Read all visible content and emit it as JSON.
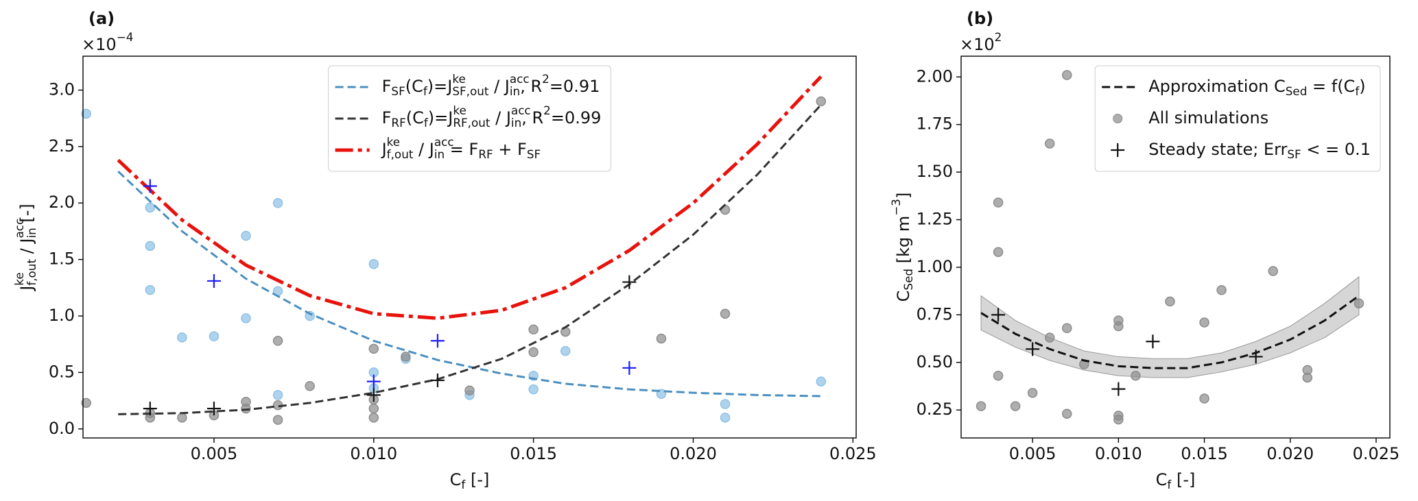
{
  "chart_data": [
    {
      "type": "scatter",
      "panel_label": "(a)",
      "offset_label": "×10^{−4}",
      "xlabel": "C_{f} [-]",
      "ylabel": "J^{ke}_{f,out} / J^{acc}_{in} [-]",
      "xlim": [
        0.0009,
        0.0251
      ],
      "ylim": [
        -0.08,
        3.3
      ],
      "xticks": [
        0.005,
        {
          "value": 0.01,
          "label": "0.010"
        },
        0.015,
        {
          "value": 0.02,
          "label": "0.020"
        },
        0.025
      ],
      "yticks": [
        {
          "value": 0,
          "label": "0.0"
        },
        0.5,
        {
          "value": 1,
          "label": "1.0"
        },
        1.5,
        {
          "value": 2,
          "label": "2.0"
        },
        2.5,
        {
          "value": 3,
          "label": "3.0"
        }
      ],
      "grid": false,
      "legend": "upper center",
      "series": [
        {
          "name": "F_{SF}(C_{f})=J^{ke}_{SF,out} / J^{acc}_{in}, R^{2}=0.91",
          "style": "dashed",
          "color": "#4a8fc0",
          "x": [
            0.002,
            0.004,
            0.006,
            0.008,
            0.01,
            0.012,
            0.014,
            0.016,
            0.018,
            0.02,
            0.022,
            0.024
          ],
          "values": [
            2.28,
            1.75,
            1.33,
            1.02,
            0.78,
            0.61,
            0.49,
            0.4,
            0.35,
            0.32,
            0.3,
            0.29
          ]
        },
        {
          "name": "F_{RF}(C_{f})=J^{ke}_{RF,out} / J^{acc}_{in}, R^{2}=0.99",
          "style": "dashed",
          "color": "#333333",
          "x": [
            0.002,
            0.004,
            0.006,
            0.008,
            0.01,
            0.012,
            0.014,
            0.016,
            0.018,
            0.02,
            0.022,
            0.024
          ],
          "values": [
            0.13,
            0.14,
            0.17,
            0.23,
            0.32,
            0.44,
            0.62,
            0.9,
            1.28,
            1.72,
            2.25,
            2.87
          ]
        },
        {
          "name": "J^{ke}_{f,out} / J^{acc}_{in} = F_{RF} + F_{SF}",
          "style": "dashdot",
          "color": "#e8120c",
          "x": [
            0.002,
            0.004,
            0.006,
            0.008,
            0.01,
            0.012,
            0.014,
            0.016,
            0.018,
            0.02,
            0.022,
            0.024
          ],
          "values": [
            2.38,
            1.85,
            1.45,
            1.18,
            1.02,
            0.98,
            1.05,
            1.25,
            1.58,
            2.0,
            2.52,
            3.12
          ]
        },
        {
          "style": "circle",
          "color": "#8ec1e6",
          "x": [
            0.001,
            0.003,
            0.003,
            0.003,
            0.004,
            0.005,
            0.006,
            0.006,
            0.007,
            0.007,
            0.007,
            0.008,
            0.01,
            0.01,
            0.01,
            0.011,
            0.013,
            0.015,
            0.015,
            0.016,
            0.019,
            0.021,
            0.021,
            0.024
          ],
          "values": [
            2.79,
            1.96,
            1.62,
            1.23,
            0.81,
            0.82,
            1.71,
            0.98,
            2.0,
            1.22,
            0.3,
            1.0,
            1.46,
            0.5,
            0.36,
            0.62,
            0.3,
            0.47,
            0.35,
            0.69,
            0.31,
            0.22,
            0.1,
            0.42
          ]
        },
        {
          "style": "circle",
          "color": "#8c8c8c",
          "x": [
            0.001,
            0.003,
            0.003,
            0.004,
            0.005,
            0.006,
            0.006,
            0.007,
            0.007,
            0.007,
            0.008,
            0.01,
            0.01,
            0.01,
            0.01,
            0.011,
            0.013,
            0.015,
            0.015,
            0.016,
            0.019,
            0.021,
            0.021,
            0.024
          ],
          "values": [
            0.23,
            0.1,
            0.14,
            0.1,
            0.12,
            0.24,
            0.18,
            0.78,
            0.21,
            0.08,
            0.38,
            0.71,
            0.26,
            0.18,
            0.1,
            0.64,
            0.34,
            0.88,
            0.68,
            0.86,
            0.8,
            1.94,
            1.02,
            2.9
          ]
        },
        {
          "style": "plus",
          "color": "#1a1aff",
          "x": [
            0.003,
            0.005,
            0.01,
            0.012,
            0.018
          ],
          "values": [
            2.15,
            1.31,
            0.42,
            0.78,
            0.54
          ]
        },
        {
          "style": "plus",
          "color": "#111111",
          "x": [
            0.003,
            0.005,
            0.01,
            0.012,
            0.018
          ],
          "values": [
            0.18,
            0.18,
            0.3,
            0.43,
            1.3
          ]
        }
      ]
    },
    {
      "type": "scatter",
      "panel_label": "(b)",
      "offset_label": "×10^{2}",
      "xlabel": "C_{f} [-]",
      "ylabel": "C_{Sed} [kg m^{−3}]",
      "xlim": [
        0.00084,
        0.0258
      ],
      "ylim": [
        0.103,
        2.109
      ],
      "xticks": [
        0.005,
        {
          "value": 0.01,
          "label": "0.010"
        },
        0.015,
        {
          "value": 0.02,
          "label": "0.020"
        },
        0.025
      ],
      "yticks": [
        0.25,
        {
          "value": 0.5,
          "label": "0.50"
        },
        0.75,
        {
          "value": 1,
          "label": "1.00"
        },
        1.25,
        {
          "value": 1.5,
          "label": "1.50"
        },
        1.75,
        {
          "value": 2,
          "label": "2.00"
        }
      ],
      "grid": false,
      "legend": "upper right",
      "series": [
        {
          "style": "band",
          "color": "#cccccc",
          "x": [
            0.002,
            0.004,
            0.006,
            0.008,
            0.01,
            0.012,
            0.014,
            0.016,
            0.018,
            0.02,
            0.022,
            0.024
          ],
          "lower": [
            0.67,
            0.58,
            0.51,
            0.46,
            0.43,
            0.42,
            0.42,
            0.45,
            0.49,
            0.55,
            0.63,
            0.75
          ],
          "upper": [
            0.85,
            0.72,
            0.63,
            0.56,
            0.53,
            0.52,
            0.52,
            0.55,
            0.61,
            0.69,
            0.81,
            0.95
          ]
        },
        {
          "name": "Approximation C_{Sed} = f(C_{f})",
          "style": "dashed",
          "color": "#111111",
          "x": [
            0.002,
            0.004,
            0.006,
            0.008,
            0.01,
            0.012,
            0.014,
            0.016,
            0.018,
            0.02,
            0.022,
            0.024
          ],
          "values": [
            0.76,
            0.65,
            0.57,
            0.51,
            0.48,
            0.47,
            0.47,
            0.5,
            0.55,
            0.62,
            0.72,
            0.85
          ]
        },
        {
          "name": "All simulations",
          "style": "circle",
          "color": "#8c8c8c",
          "x": [
            0.002,
            0.003,
            0.003,
            0.003,
            0.004,
            0.005,
            0.006,
            0.006,
            0.007,
            0.007,
            0.007,
            0.008,
            0.01,
            0.01,
            0.01,
            0.01,
            0.011,
            0.013,
            0.015,
            0.015,
            0.016,
            0.019,
            0.021,
            0.021,
            0.024
          ],
          "values": [
            0.27,
            1.34,
            1.08,
            0.43,
            0.27,
            0.34,
            1.65,
            0.63,
            2.01,
            0.68,
            0.23,
            0.49,
            0.72,
            0.69,
            0.22,
            0.2,
            0.43,
            0.82,
            0.71,
            0.31,
            0.88,
            0.98,
            0.46,
            0.42,
            0.81
          ]
        },
        {
          "name": "Steady state; Err_{SF} < = 0.1",
          "style": "plus",
          "color": "#111111",
          "x": [
            0.003,
            0.005,
            0.01,
            0.012,
            0.018
          ],
          "values": [
            0.75,
            0.57,
            0.36,
            0.61,
            0.53
          ]
        }
      ]
    }
  ]
}
